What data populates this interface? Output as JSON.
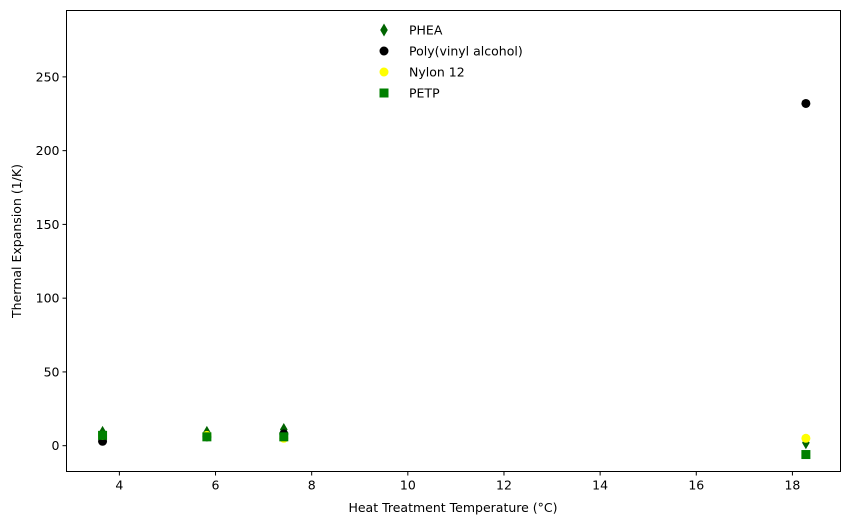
{
  "chart_data": {
    "type": "scatter",
    "title": "",
    "xlabel": "Heat Treatment Temperature (°C)",
    "ylabel": "Thermal Expansion (1/K)",
    "xlim": [
      2.9,
      19.0
    ],
    "ylim": [
      -17.5,
      295
    ],
    "xticks": [
      4,
      6,
      8,
      10,
      12,
      14,
      16,
      18
    ],
    "yticks": [
      0,
      50,
      100,
      150,
      200,
      250
    ],
    "grid": false,
    "legend_position": "top-center",
    "series": [
      {
        "name": "PHEA",
        "marker": "thin-diamond",
        "color": "#006400",
        "x": [
          3.65,
          5.82,
          7.42,
          18.28
        ],
        "y": [
          9,
          9,
          11,
          2
        ]
      },
      {
        "name": "Poly(vinyl alcohol)",
        "marker": "circle",
        "color": "#000000",
        "x": [
          3.65,
          5.82,
          7.42,
          18.28
        ],
        "y": [
          3,
          6,
          8,
          232
        ]
      },
      {
        "name": "Nylon 12",
        "marker": "circle",
        "color": "#ffff00",
        "x": [
          3.65,
          5.82,
          7.42,
          18.28
        ],
        "y": [
          7,
          7,
          5,
          5
        ]
      },
      {
        "name": "PETP",
        "marker": "square",
        "color": "#008000",
        "x": [
          3.65,
          5.82,
          7.42,
          18.28
        ],
        "y": [
          7,
          6,
          6,
          -6
        ]
      }
    ]
  }
}
